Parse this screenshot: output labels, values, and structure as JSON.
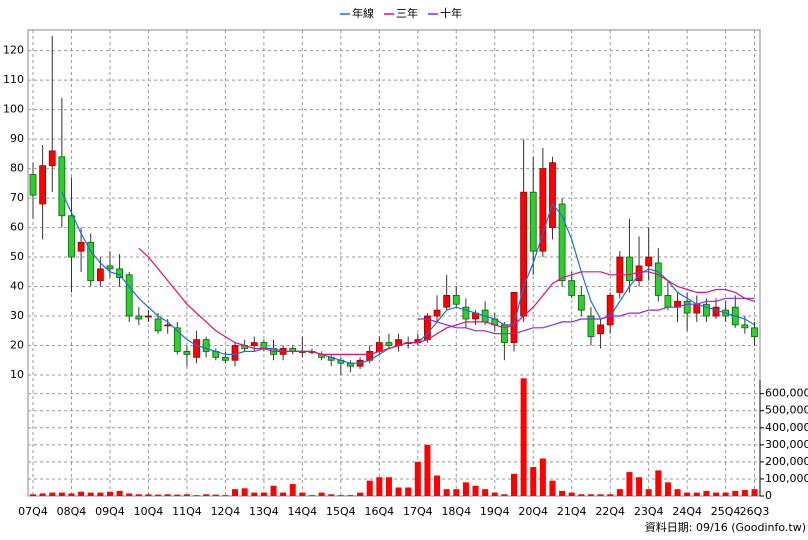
{
  "chart_data": {
    "type": "candlestick",
    "legend": "top",
    "up_color": "#ff0000",
    "down_color": "#33cc33",
    "volume_color": "#ff0000",
    "footer": "資料日期: 09/16 (Goodinfo.tw)",
    "categories": [
      "07Q4",
      null,
      null,
      null,
      "08Q4",
      null,
      null,
      null,
      "09Q4",
      null,
      null,
      null,
      "10Q4",
      null,
      null,
      null,
      "11Q4",
      null,
      null,
      null,
      "12Q4",
      null,
      null,
      null,
      "13Q4",
      null,
      null,
      null,
      "14Q4",
      null,
      null,
      null,
      "15Q4",
      null,
      null,
      null,
      "16Q4",
      null,
      null,
      null,
      "17Q4",
      null,
      null,
      null,
      "18Q4",
      null,
      null,
      null,
      "19Q4",
      null,
      null,
      null,
      "20Q4",
      null,
      null,
      null,
      "21Q4",
      null,
      null,
      null,
      "22Q4",
      null,
      null,
      null,
      "23Q4",
      null,
      null,
      null,
      "24Q4",
      null,
      null,
      null,
      "25Q4",
      null,
      null,
      "26Q3"
    ],
    "open": [
      78,
      68,
      81,
      84,
      64,
      52,
      55,
      42,
      47,
      46,
      44,
      30,
      30,
      29,
      27,
      26,
      18,
      16,
      22,
      18,
      16,
      15,
      20,
      20,
      21,
      19,
      17,
      19,
      18,
      18,
      17,
      16,
      15,
      14,
      13,
      15,
      18,
      21,
      20,
      21,
      21,
      22,
      30,
      33,
      37,
      33,
      29,
      32,
      29,
      27,
      21,
      30,
      72,
      52,
      60,
      68,
      42,
      37,
      30,
      24,
      27,
      38,
      50,
      42,
      47,
      48,
      37,
      33,
      35,
      31,
      34,
      30,
      32,
      33,
      27,
      26
    ],
    "high": [
      82,
      88,
      125,
      104,
      77,
      60,
      58,
      50,
      52,
      51,
      45,
      33,
      32,
      31,
      29,
      28,
      20,
      25,
      23,
      19,
      18,
      21,
      22,
      23,
      22,
      22,
      20,
      20,
      23,
      19,
      18,
      17,
      16,
      15,
      16,
      20,
      23,
      24,
      24,
      23,
      24,
      31,
      37,
      44,
      40,
      36,
      32,
      35,
      31,
      28,
      38,
      90,
      84,
      87,
      84,
      70,
      45,
      40,
      33,
      29,
      38,
      52,
      63,
      57,
      60,
      53,
      42,
      38,
      38,
      37,
      36,
      36,
      35,
      37,
      30,
      28
    ],
    "low": [
      63,
      56,
      72,
      60,
      38,
      45,
      40,
      40,
      43,
      40,
      28,
      27,
      28,
      24,
      24,
      17,
      13,
      14,
      16,
      15,
      14,
      13,
      18,
      18,
      18,
      15,
      15,
      17,
      16,
      17,
      15,
      13,
      10,
      11,
      12,
      14,
      17,
      19,
      18,
      19,
      20,
      21,
      28,
      32,
      33,
      26,
      27,
      27,
      25,
      15,
      18,
      28,
      44,
      50,
      56,
      40,
      36,
      30,
      20,
      19,
      24,
      36,
      38,
      40,
      42,
      35,
      32,
      28,
      25,
      28,
      28,
      29,
      28,
      26,
      24,
      20
    ],
    "close": [
      71,
      81,
      86,
      64,
      50,
      55,
      42,
      46,
      46,
      43,
      30,
      29,
      30,
      25,
      27,
      18,
      17,
      22,
      18,
      16,
      15,
      20,
      19,
      21,
      19,
      17,
      19,
      18,
      18,
      18,
      16,
      15,
      14,
      13,
      15,
      18,
      21,
      20,
      22,
      21,
      22,
      30,
      32,
      37,
      34,
      29,
      31,
      28,
      27,
      21,
      38,
      72,
      52,
      80,
      82,
      42,
      37,
      32,
      23,
      27,
      37,
      50,
      42,
      47,
      50,
      37,
      33,
      35,
      31,
      34,
      30,
      33,
      30,
      27,
      26,
      23
    ],
    "volume": [
      10000,
      15000,
      20000,
      20000,
      15000,
      25000,
      20000,
      20000,
      25000,
      30000,
      15000,
      10000,
      10000,
      8000,
      10000,
      8000,
      10000,
      5000,
      10000,
      8000,
      5000,
      40000,
      45000,
      20000,
      20000,
      60000,
      20000,
      70000,
      20000,
      5000,
      20000,
      10000,
      5000,
      5000,
      20000,
      90000,
      110000,
      110000,
      50000,
      50000,
      200000,
      300000,
      120000,
      40000,
      40000,
      80000,
      60000,
      40000,
      20000,
      10000,
      130000,
      690000,
      170000,
      220000,
      90000,
      30000,
      20000,
      10000,
      10000,
      10000,
      10000,
      40000,
      140000,
      110000,
      40000,
      150000,
      80000,
      40000,
      20000,
      20000,
      30000,
      20000,
      20000,
      30000,
      35000,
      40000
    ],
    "lines": [
      {
        "name": "年線",
        "color": "#1e6fd8",
        "values": [
          null,
          null,
          null,
          72,
          65,
          58,
          52,
          48,
          45,
          44,
          40,
          36,
          33,
          30,
          28,
          25,
          22,
          20,
          19,
          18,
          17,
          17,
          18,
          18,
          19,
          19,
          18,
          18,
          18,
          18,
          17,
          16,
          15,
          14,
          14,
          15,
          17,
          19,
          20,
          21,
          21,
          24,
          28,
          32,
          33,
          32,
          31,
          30,
          29,
          27,
          27,
          40,
          48,
          58,
          68,
          64,
          56,
          45,
          35,
          29,
          30,
          35,
          40,
          44,
          46,
          45,
          42,
          38,
          36,
          34,
          33,
          32,
          31,
          30,
          29,
          27
        ]
      },
      {
        "name": "三年",
        "color": "#e0107a",
        "values": [
          null,
          null,
          null,
          null,
          null,
          null,
          null,
          null,
          null,
          null,
          null,
          53,
          50,
          46,
          42,
          38,
          34,
          31,
          28,
          25,
          23,
          21,
          20,
          19,
          19,
          18,
          18,
          18,
          18,
          18,
          17,
          17,
          17,
          17,
          17,
          17,
          18,
          19,
          20,
          21,
          21,
          22,
          24,
          26,
          27,
          28,
          28,
          28,
          27,
          26,
          27,
          30,
          33,
          37,
          41,
          43,
          44,
          45,
          45,
          45,
          44,
          44,
          44,
          45,
          45,
          44,
          42,
          40,
          39,
          38,
          38,
          39,
          39,
          38,
          36,
          35
        ]
      },
      {
        "name": "十年",
        "color": "#8a2be2",
        "values": [
          null,
          null,
          null,
          null,
          null,
          null,
          null,
          null,
          null,
          null,
          null,
          null,
          null,
          null,
          null,
          null,
          null,
          null,
          null,
          null,
          null,
          null,
          null,
          null,
          null,
          null,
          null,
          null,
          null,
          null,
          null,
          null,
          null,
          null,
          null,
          null,
          null,
          null,
          null,
          null,
          29,
          29,
          28,
          27,
          26,
          26,
          25,
          25,
          24,
          24,
          24,
          25,
          26,
          26,
          27,
          28,
          28,
          29,
          29,
          29,
          30,
          30,
          31,
          31,
          32,
          32,
          33,
          33,
          34,
          34,
          35,
          35,
          36,
          36,
          36,
          36
        ]
      }
    ],
    "ylim": [
      0,
      127
    ],
    "yticks": [
      10,
      20,
      30,
      40,
      50,
      60,
      70,
      80,
      90,
      100,
      110,
      120
    ],
    "y2lim": [
      0,
      680000
    ],
    "y2ticks": [
      0,
      {
        "value": 100000,
        "label": "100,000"
      },
      {
        "value": 200000,
        "label": "200,000"
      },
      {
        "value": 300000,
        "label": "300,000"
      },
      {
        "value": 400000,
        "label": "400,000"
      },
      {
        "value": 500000,
        "label": "500,000"
      },
      {
        "value": 600000,
        "label": "600,000"
      }
    ],
    "grid": true
  }
}
